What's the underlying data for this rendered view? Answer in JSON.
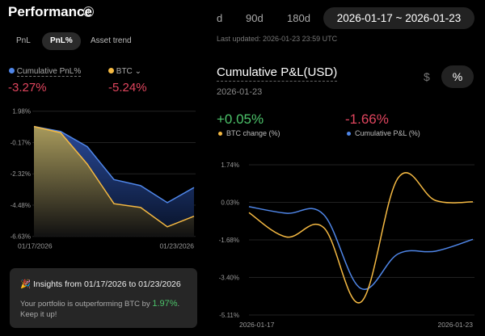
{
  "header": {
    "title": "Performance",
    "info_icon": "i"
  },
  "tabs": [
    {
      "label": "PnL"
    },
    {
      "label": "PnL%",
      "active": true
    },
    {
      "label": "Asset trend"
    }
  ],
  "legend": {
    "cumulative_label": "Cumulative PnL%",
    "cumulative_value": "-3.27%",
    "btc_label": "BTC",
    "btc_value": "-5.24%"
  },
  "colors": {
    "blue": "#4f86e8",
    "yellow": "#f5b942",
    "negative": "#e0455e",
    "positive": "#4cc36a"
  },
  "insight": {
    "title": "Insights from 01/17/2026 to 01/23/2026",
    "text": "Your portfolio is outperforming BTC by ",
    "value": "1.97%",
    "text_end": ".",
    "text2": "Keep it up!"
  },
  "ranges": {
    "partial": "d",
    "r90": "90d",
    "r180": "180d",
    "custom": "2026-01-17 ~ 2026-01-23"
  },
  "last_updated": "Last updated: 2026-01-23 23:59 UTC",
  "right": {
    "title": "Cumulative P&L(USD)",
    "date": "2026-01-23",
    "unit_usd": "$",
    "unit_pct": "%",
    "btc_value": "+0.05%",
    "btc_label": "BTC change (%)",
    "pnl_value": "-1.66%",
    "pnl_label": "Cumulative P&L (%)"
  },
  "chart_data": [
    {
      "type": "area",
      "x": [
        "01/17/2026",
        "01/18/2026",
        "01/19/2026",
        "01/20/2026",
        "01/21/2026",
        "01/22/2026",
        "01/23/2026"
      ],
      "xtick_labels": [
        "01/17/2026",
        "01/23/2026"
      ],
      "yticks": [
        "1.98%",
        "-0.17%",
        "-2.32%",
        "-4.48%",
        "-6.63%"
      ],
      "ylim": [
        -6.63,
        1.98
      ],
      "grid": true,
      "series": [
        {
          "name": "Cumulative PnL%",
          "values": [
            0.93,
            0.59,
            -0.46,
            -2.72,
            -3.14,
            -4.31,
            -3.27
          ]
        },
        {
          "name": "BTC",
          "values": [
            0.93,
            0.5,
            -1.66,
            -4.38,
            -4.64,
            -5.97,
            -5.24
          ]
        }
      ]
    },
    {
      "type": "line",
      "x": [
        "2026-01-17",
        "2026-01-18",
        "2026-01-19",
        "2026-01-20",
        "2026-01-21",
        "2026-01-22",
        "2026-01-23"
      ],
      "xtick_labels": [
        "2026-01-17",
        "2026-01-23"
      ],
      "yticks": [
        "1.74%",
        "0.03%",
        "-1.68%",
        "-3.40%",
        "-5.11%"
      ],
      "ylim": [
        -5.11,
        1.74
      ],
      "grid": true,
      "series": [
        {
          "name": "Cumulative P&L (%)",
          "values": [
            -0.17,
            -0.47,
            -0.53,
            -3.9,
            -2.32,
            -2.2,
            -1.66
          ]
        },
        {
          "name": "BTC change (%)",
          "values": [
            -0.44,
            -1.55,
            -1.12,
            -4.52,
            1.15,
            0.11,
            0.05
          ]
        }
      ]
    }
  ]
}
